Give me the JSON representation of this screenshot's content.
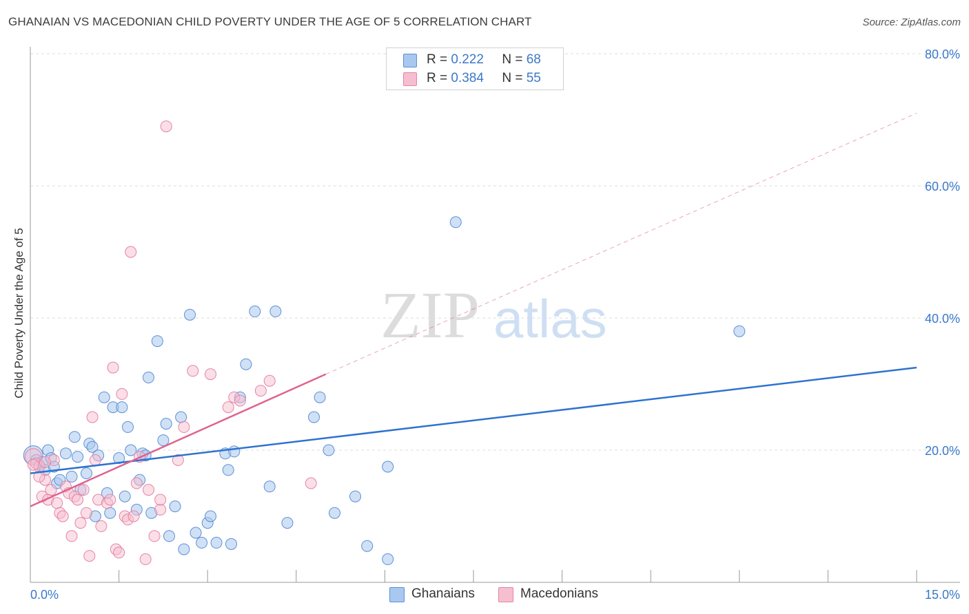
{
  "header": {
    "title": "GHANAIAN VS MACEDONIAN CHILD POVERTY UNDER THE AGE OF 5 CORRELATION CHART",
    "source": "Source: ZipAtlas.com"
  },
  "watermark": {
    "zip": "ZIP",
    "atlas": "atlas"
  },
  "legend": {
    "rows": [
      {
        "r_label": "R =",
        "r_value": "0.222",
        "n_label": "N =",
        "n_value": "68"
      },
      {
        "r_label": "R =",
        "r_value": "0.384",
        "n_label": "N =",
        "n_value": "55"
      }
    ]
  },
  "bottom_legend": {
    "series1": "Ghanaians",
    "series2": "Macedonians"
  },
  "colors": {
    "blue_fill": "#a9c8ef",
    "blue_stroke": "#5b8fd6",
    "blue_line": "#2f72d0",
    "pink_fill": "#f6bfd0",
    "pink_stroke": "#e583a5",
    "pink_line": "#e0628f",
    "axis_text": "#3a78c9",
    "grid": "#dddddd"
  },
  "chart_data": {
    "type": "scatter",
    "title": "GHANAIAN VS MACEDONIAN CHILD POVERTY UNDER THE AGE OF 5 CORRELATION CHART",
    "xlabel": "",
    "ylabel": "Child Poverty Under the Age of 5",
    "xlim": [
      0,
      15
    ],
    "ylim": [
      0,
      80
    ],
    "x_tick_labels": [
      "0.0%",
      "15.0%"
    ],
    "y_ticks": [
      20,
      40,
      60,
      80
    ],
    "y_tick_labels": [
      "20.0%",
      "40.0%",
      "60.0%",
      "80.0%"
    ],
    "grid": true,
    "series": [
      {
        "name": "Ghanaians",
        "R": 0.222,
        "N": 68,
        "trend": {
          "x0": 0,
          "y0": 16.5,
          "x1": 15,
          "y1": 32.5,
          "dashed_extension": false
        },
        "points": [
          [
            0.05,
            19.2
          ],
          [
            0.1,
            18.5
          ],
          [
            0.15,
            17.8
          ],
          [
            0.2,
            18.2
          ],
          [
            0.25,
            17.0
          ],
          [
            0.3,
            20.0
          ],
          [
            0.35,
            18.8
          ],
          [
            0.4,
            17.5
          ],
          [
            0.45,
            15.0
          ],
          [
            0.5,
            15.5
          ],
          [
            0.6,
            19.5
          ],
          [
            0.7,
            16.0
          ],
          [
            0.75,
            22.0
          ],
          [
            0.8,
            19.0
          ],
          [
            0.85,
            14.0
          ],
          [
            0.95,
            16.5
          ],
          [
            1.0,
            21.0
          ],
          [
            1.05,
            20.5
          ],
          [
            1.1,
            10.0
          ],
          [
            1.15,
            19.2
          ],
          [
            1.25,
            28.0
          ],
          [
            1.3,
            13.5
          ],
          [
            1.35,
            10.5
          ],
          [
            1.4,
            26.5
          ],
          [
            1.5,
            18.8
          ],
          [
            1.55,
            26.5
          ],
          [
            1.6,
            13.0
          ],
          [
            1.65,
            23.5
          ],
          [
            1.7,
            20.0
          ],
          [
            1.8,
            11.0
          ],
          [
            1.85,
            15.5
          ],
          [
            1.9,
            19.5
          ],
          [
            1.95,
            19.2
          ],
          [
            2.0,
            31.0
          ],
          [
            2.05,
            10.5
          ],
          [
            2.15,
            36.5
          ],
          [
            2.25,
            21.5
          ],
          [
            2.3,
            24.0
          ],
          [
            2.35,
            7.0
          ],
          [
            2.45,
            11.5
          ],
          [
            2.55,
            25.0
          ],
          [
            2.6,
            5.0
          ],
          [
            2.7,
            40.5
          ],
          [
            2.8,
            7.5
          ],
          [
            2.9,
            6.0
          ],
          [
            3.0,
            9.0
          ],
          [
            3.05,
            10.0
          ],
          [
            3.15,
            6.0
          ],
          [
            3.3,
            19.5
          ],
          [
            3.35,
            17.0
          ],
          [
            3.4,
            5.8
          ],
          [
            3.45,
            19.8
          ],
          [
            3.55,
            28.0
          ],
          [
            3.65,
            33.0
          ],
          [
            3.8,
            41.0
          ],
          [
            4.05,
            14.5
          ],
          [
            4.15,
            41.0
          ],
          [
            4.35,
            9.0
          ],
          [
            4.8,
            25.0
          ],
          [
            4.9,
            28.0
          ],
          [
            5.05,
            20.0
          ],
          [
            5.15,
            10.5
          ],
          [
            5.5,
            13.0
          ],
          [
            5.7,
            5.5
          ],
          [
            6.05,
            17.5
          ],
          [
            6.05,
            3.5
          ],
          [
            7.2,
            54.5
          ],
          [
            12.0,
            38.0
          ]
        ]
      },
      {
        "name": "Macedonians",
        "R": 0.384,
        "N": 55,
        "trend": {
          "x0": 0,
          "y0": 11.5,
          "x1": 5.0,
          "y1": 31.5,
          "dashed_to": [
            15,
            71
          ]
        },
        "points": [
          [
            0.05,
            19.0
          ],
          [
            0.1,
            18.0
          ],
          [
            0.15,
            17.5
          ],
          [
            0.2,
            13.0
          ],
          [
            0.25,
            15.5
          ],
          [
            0.3,
            12.5
          ],
          [
            0.35,
            14.0
          ],
          [
            0.4,
            18.5
          ],
          [
            0.45,
            12.0
          ],
          [
            0.5,
            10.5
          ],
          [
            0.55,
            10.0
          ],
          [
            0.6,
            14.5
          ],
          [
            0.65,
            13.5
          ],
          [
            0.7,
            7.0
          ],
          [
            0.75,
            13.0
          ],
          [
            0.8,
            12.5
          ],
          [
            0.85,
            9.0
          ],
          [
            0.9,
            14.0
          ],
          [
            0.95,
            10.5
          ],
          [
            1.0,
            4.0
          ],
          [
            1.05,
            25.0
          ],
          [
            1.1,
            18.5
          ],
          [
            1.15,
            12.5
          ],
          [
            1.2,
            8.5
          ],
          [
            1.3,
            12.0
          ],
          [
            1.35,
            12.5
          ],
          [
            1.4,
            32.5
          ],
          [
            1.45,
            5.0
          ],
          [
            1.5,
            4.5
          ],
          [
            1.55,
            28.5
          ],
          [
            1.6,
            10.0
          ],
          [
            1.65,
            9.5
          ],
          [
            1.7,
            50.0
          ],
          [
            1.75,
            10.0
          ],
          [
            1.8,
            15.0
          ],
          [
            1.85,
            19.0
          ],
          [
            1.95,
            3.5
          ],
          [
            2.0,
            14.0
          ],
          [
            2.1,
            7.0
          ],
          [
            2.2,
            11.0
          ],
          [
            2.2,
            12.5
          ],
          [
            2.3,
            69.0
          ],
          [
            2.5,
            18.5
          ],
          [
            2.6,
            23.5
          ],
          [
            2.75,
            32.0
          ],
          [
            3.05,
            31.5
          ],
          [
            3.35,
            26.5
          ],
          [
            3.45,
            28.0
          ],
          [
            3.55,
            27.5
          ],
          [
            3.9,
            29.0
          ],
          [
            4.05,
            30.5
          ],
          [
            4.75,
            15.0
          ],
          [
            0.05,
            17.8
          ],
          [
            0.25,
            18.2
          ],
          [
            0.15,
            16.0
          ]
        ]
      }
    ]
  }
}
